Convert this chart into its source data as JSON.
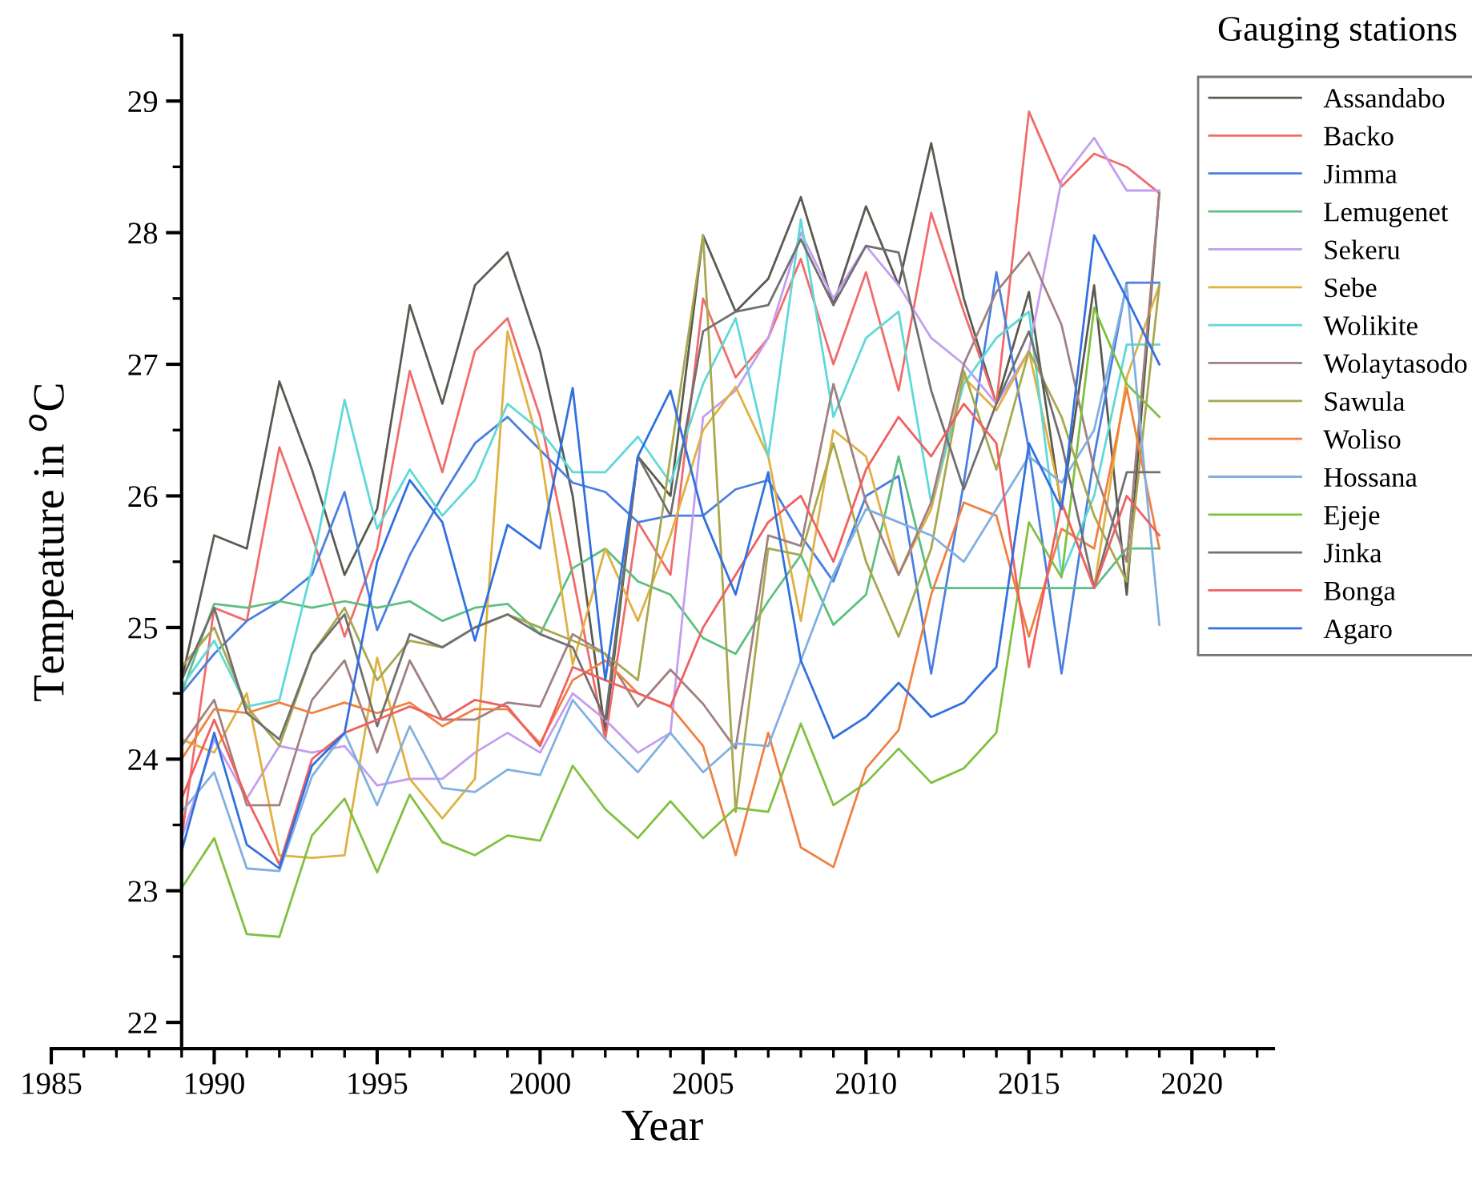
{
  "chart_data": {
    "type": "line",
    "xlabel": "Year",
    "ylabel": "Tempeature in $^{o}$C",
    "legend_title": "Gauging stations",
    "x": [
      1989,
      1990,
      1991,
      1992,
      1993,
      1994,
      1995,
      1996,
      1997,
      1998,
      1999,
      2000,
      2001,
      2002,
      2003,
      2004,
      2005,
      2006,
      2007,
      2008,
      2009,
      2010,
      2011,
      2012,
      2013,
      2014,
      2015,
      2016,
      2017,
      2018,
      2019
    ],
    "xlim": [
      1985,
      2022.5
    ],
    "xticks": [
      1985,
      1990,
      1995,
      2000,
      2005,
      2010,
      2015,
      2020
    ],
    "ylim": [
      21.8,
      29.5
    ],
    "yticks": [
      22,
      23,
      24,
      25,
      26,
      27,
      28,
      29
    ],
    "grid": false,
    "legend": "right",
    "marker": "none",
    "line_style": "solid",
    "series": [
      {
        "name": "Assandabo",
        "color": "#5a5a50",
        "values": [
          24.6,
          25.7,
          25.6,
          26.87,
          26.2,
          25.4,
          25.9,
          27.45,
          26.7,
          27.6,
          27.85,
          27.1,
          26.0,
          24.2,
          26.3,
          26.0,
          27.98,
          27.4,
          27.65,
          28.27,
          27.45,
          28.2,
          27.6,
          28.68,
          27.5,
          26.7,
          27.55,
          25.9,
          27.6,
          25.25,
          28.3
        ]
      },
      {
        "name": "Backo",
        "color": "#f26b6b",
        "values": [
          23.4,
          25.15,
          25.05,
          26.37,
          25.7,
          24.93,
          25.6,
          26.95,
          26.18,
          27.1,
          27.35,
          26.6,
          25.4,
          24.15,
          25.8,
          25.4,
          27.5,
          26.9,
          27.2,
          27.8,
          27.0,
          27.7,
          26.8,
          28.15,
          27.4,
          26.7,
          28.92,
          28.35,
          28.6,
          28.5,
          28.3
        ]
      },
      {
        "name": "Jimma",
        "color": "#4a7fe0",
        "values": [
          24.5,
          24.8,
          25.05,
          25.2,
          25.4,
          26.03,
          24.98,
          25.55,
          26.0,
          26.4,
          26.6,
          26.35,
          26.1,
          26.03,
          25.8,
          25.85,
          25.85,
          26.05,
          26.12,
          25.7,
          25.35,
          26.0,
          26.15,
          24.65,
          26.1,
          27.7,
          26.35,
          24.65,
          26.3,
          27.62,
          27.62
        ]
      },
      {
        "name": "Lemugenet",
        "color": "#5cbf7f",
        "values": [
          24.5,
          25.18,
          25.15,
          25.2,
          25.15,
          25.2,
          25.15,
          25.2,
          25.05,
          25.15,
          25.18,
          24.95,
          25.45,
          25.6,
          25.35,
          25.25,
          24.92,
          24.8,
          25.2,
          25.55,
          25.02,
          25.25,
          26.3,
          25.3,
          25.3,
          25.3,
          25.3,
          25.3,
          25.3,
          25.6,
          25.6
        ]
      },
      {
        "name": "Sekeru",
        "color": "#c39df0",
        "values": [
          23.4,
          24.15,
          23.7,
          24.1,
          24.05,
          24.1,
          23.8,
          23.85,
          23.85,
          24.05,
          24.2,
          24.05,
          24.5,
          24.3,
          24.05,
          24.2,
          26.6,
          26.8,
          27.2,
          28.0,
          27.5,
          27.9,
          27.6,
          27.2,
          27.0,
          26.7,
          27.1,
          28.4,
          28.72,
          28.32,
          28.32
        ]
      },
      {
        "name": "Sebe",
        "color": "#e0b040",
        "values": [
          24.15,
          24.05,
          24.5,
          23.27,
          23.25,
          23.27,
          24.77,
          23.85,
          23.55,
          23.85,
          27.25,
          26.35,
          24.72,
          25.6,
          25.05,
          25.7,
          26.5,
          26.83,
          26.3,
          25.05,
          26.5,
          26.3,
          25.4,
          25.9,
          26.9,
          26.65,
          27.1,
          25.95,
          25.3,
          26.9,
          27.6
        ]
      },
      {
        "name": "Wolikite",
        "color": "#5fd8d8",
        "values": [
          24.55,
          24.9,
          24.4,
          24.45,
          25.45,
          26.73,
          25.75,
          26.2,
          25.85,
          26.12,
          26.7,
          26.5,
          26.18,
          26.18,
          26.45,
          26.1,
          26.85,
          27.35,
          26.3,
          28.1,
          26.6,
          27.2,
          27.4,
          25.95,
          26.85,
          27.2,
          27.4,
          25.4,
          26.0,
          27.15,
          27.15
        ]
      },
      {
        "name": "Wolaytasodo",
        "color": "#a08080",
        "values": [
          24.1,
          24.45,
          23.65,
          23.65,
          24.45,
          24.75,
          24.05,
          24.75,
          24.3,
          24.3,
          24.43,
          24.4,
          24.95,
          24.8,
          24.4,
          24.68,
          24.42,
          24.08,
          25.7,
          25.62,
          26.85,
          25.95,
          25.4,
          25.95,
          27.0,
          27.55,
          27.85,
          27.3,
          26.2,
          25.5,
          28.3
        ]
      },
      {
        "name": "Sawula",
        "color": "#a8a850",
        "values": [
          24.7,
          25.0,
          24.4,
          24.1,
          24.8,
          25.15,
          24.6,
          24.9,
          24.85,
          25.0,
          25.1,
          25.0,
          24.9,
          24.8,
          24.6,
          26.3,
          27.98,
          23.6,
          25.6,
          25.55,
          26.4,
          25.5,
          24.93,
          25.6,
          26.95,
          26.2,
          27.1,
          26.6,
          25.85,
          25.35,
          27.6
        ]
      },
      {
        "name": "Woliso",
        "color": "#f08040",
        "values": [
          24.0,
          24.38,
          24.35,
          24.43,
          24.35,
          24.43,
          24.35,
          24.43,
          24.25,
          24.38,
          24.38,
          24.12,
          24.6,
          24.75,
          24.5,
          24.4,
          24.1,
          23.27,
          24.2,
          23.33,
          23.18,
          23.93,
          24.22,
          25.25,
          25.95,
          25.85,
          24.93,
          25.75,
          25.6,
          26.82,
          25.6
        ]
      },
      {
        "name": "Hossana",
        "color": "#80b0e0",
        "values": [
          23.6,
          23.9,
          23.17,
          23.15,
          23.87,
          24.2,
          23.65,
          24.25,
          23.78,
          23.75,
          23.92,
          23.88,
          24.45,
          24.15,
          23.9,
          24.2,
          23.9,
          24.12,
          24.1,
          24.75,
          25.4,
          25.9,
          25.8,
          25.7,
          25.5,
          25.9,
          26.3,
          26.1,
          26.5,
          27.6,
          25.02
        ]
      },
      {
        "name": "Ejeje",
        "color": "#80c040",
        "values": [
          23.02,
          23.4,
          22.67,
          22.65,
          23.42,
          23.7,
          23.14,
          23.73,
          23.37,
          23.27,
          23.42,
          23.38,
          23.95,
          23.62,
          23.4,
          23.68,
          23.4,
          23.63,
          23.6,
          24.27,
          23.65,
          23.82,
          24.08,
          23.82,
          23.93,
          24.2,
          25.8,
          25.38,
          27.43,
          26.85,
          26.6
        ]
      },
      {
        "name": "Jinka",
        "color": "#707070",
        "values": [
          24.6,
          25.15,
          24.35,
          24.15,
          24.8,
          25.1,
          24.25,
          24.95,
          24.85,
          25.0,
          25.1,
          24.95,
          24.85,
          24.3,
          26.3,
          25.85,
          27.25,
          27.4,
          27.45,
          27.95,
          27.45,
          27.9,
          27.85,
          26.8,
          26.05,
          26.7,
          27.25,
          26.4,
          25.3,
          26.18,
          26.18
        ]
      },
      {
        "name": "Bonga",
        "color": "#f06060",
        "values": [
          23.7,
          24.3,
          23.7,
          23.2,
          24.0,
          24.2,
          24.3,
          24.4,
          24.3,
          24.45,
          24.4,
          24.1,
          24.7,
          24.6,
          24.5,
          24.4,
          25.0,
          25.4,
          25.8,
          26.0,
          25.5,
          26.2,
          26.6,
          26.3,
          26.7,
          26.4,
          24.7,
          25.95,
          25.3,
          26.0,
          25.7
        ]
      },
      {
        "name": "Agaro",
        "color": "#3070e0",
        "values": [
          23.3,
          24.2,
          23.35,
          23.17,
          23.95,
          24.2,
          25.5,
          26.12,
          25.8,
          24.9,
          25.78,
          25.6,
          26.82,
          24.6,
          26.3,
          26.8,
          25.85,
          25.25,
          26.18,
          24.75,
          24.16,
          24.32,
          24.58,
          24.32,
          24.43,
          24.7,
          26.4,
          25.9,
          27.98,
          27.5,
          27.0
        ]
      }
    ]
  }
}
